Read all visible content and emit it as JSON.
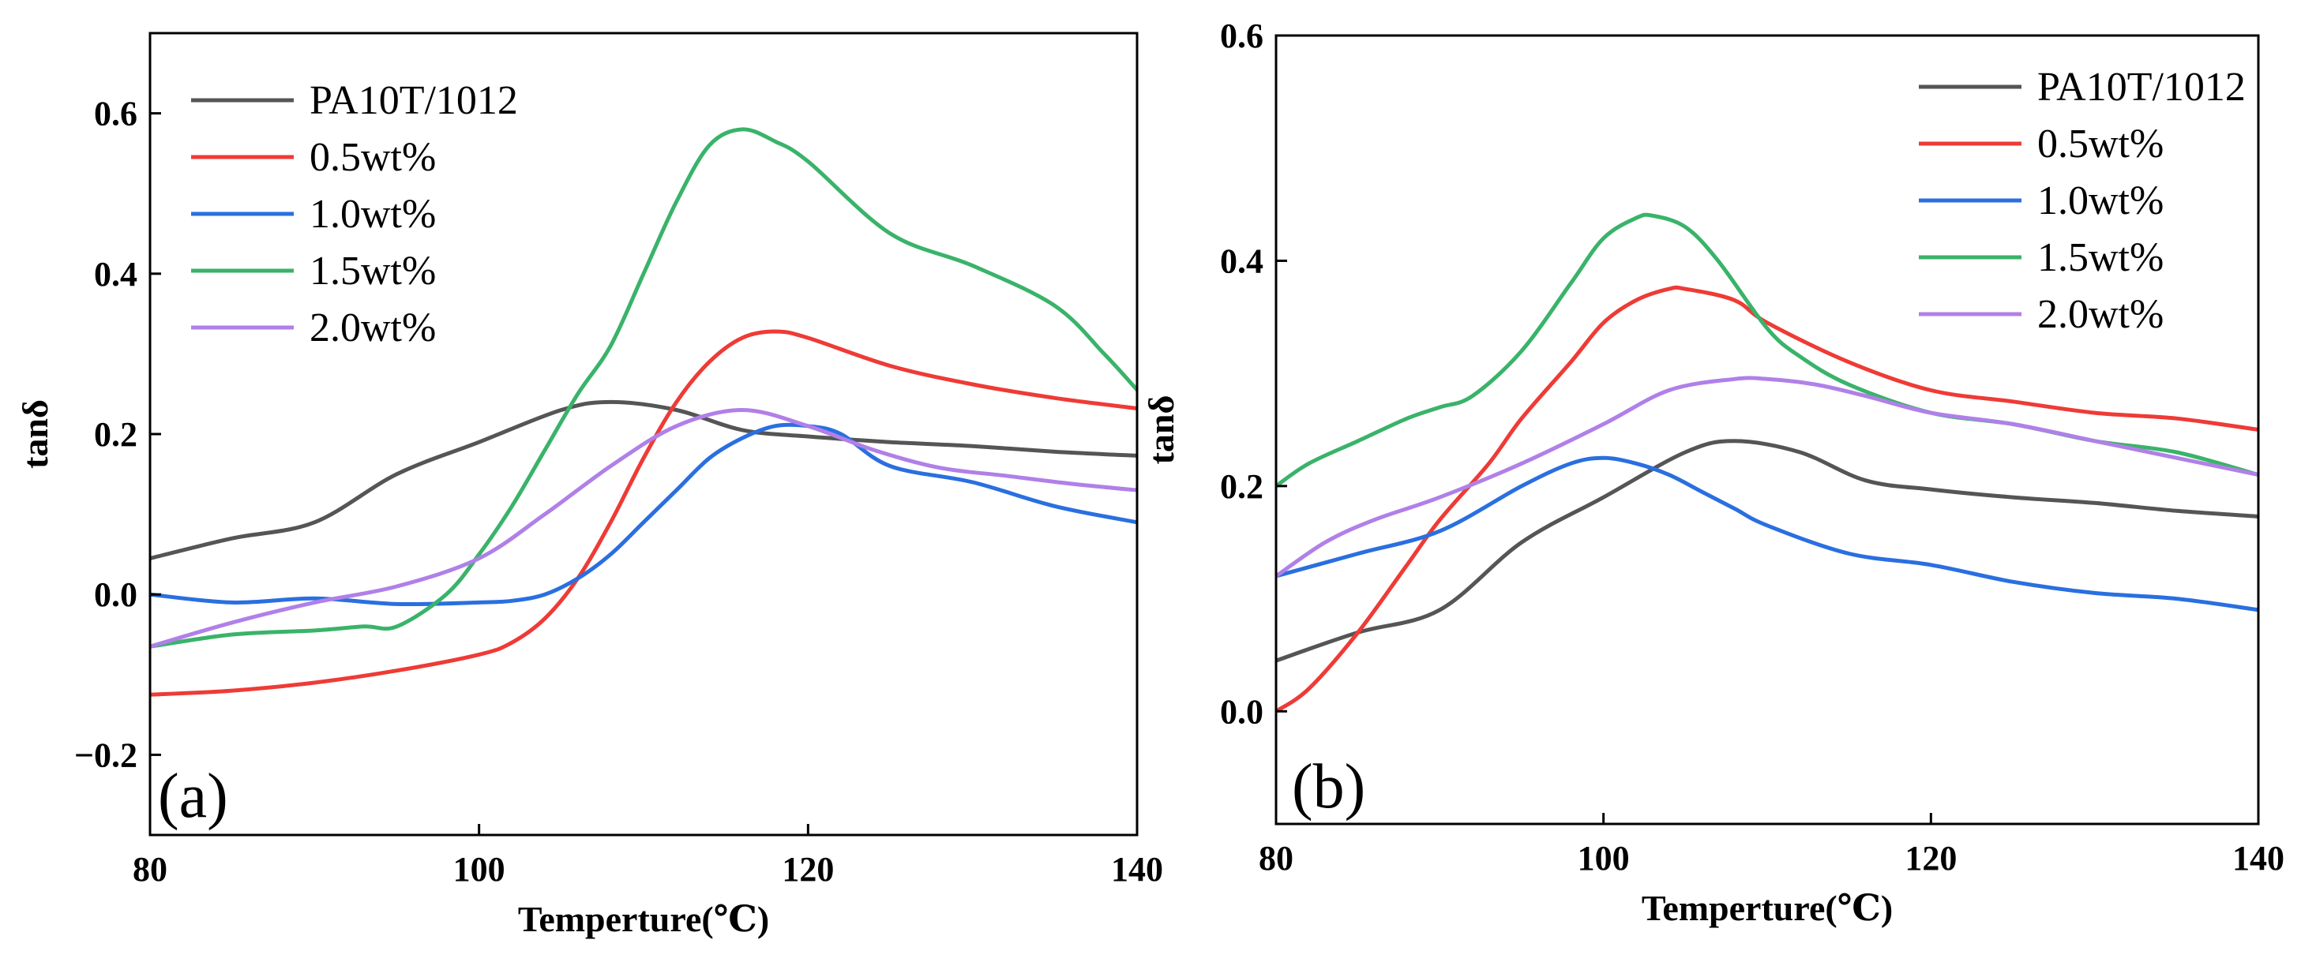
{
  "chart_data": [
    {
      "type": "line",
      "panel_label": "(a)",
      "xlabel": "Temperture(℃)",
      "ylabel": "tanδ",
      "xlim": [
        80,
        140
      ],
      "ylim": [
        -0.3,
        0.7
      ],
      "xticks": [
        80,
        100,
        120,
        140
      ],
      "xtick_labels": [
        "80",
        "100",
        "120",
        "140"
      ],
      "yticks": [
        -0.2,
        0.0,
        0.2,
        0.4,
        0.6
      ],
      "ytick_labels": [
        "−0.2",
        "0.0",
        "0.2",
        "0.4",
        "0.6"
      ],
      "legend_position": "top-left",
      "series": [
        {
          "name": "PA10T/1012",
          "color": "#555555",
          "x": [
            80,
            85,
            90,
            95,
            100,
            105,
            108,
            112,
            116,
            120,
            125,
            130,
            135,
            140
          ],
          "y": [
            0.045,
            0.07,
            0.09,
            0.15,
            0.19,
            0.23,
            0.24,
            0.23,
            0.205,
            0.197,
            0.19,
            0.185,
            0.178,
            0.173
          ]
        },
        {
          "name": "0.5wt%",
          "color": "#ee3b36",
          "x": [
            80,
            85,
            90,
            95,
            100,
            102,
            104,
            106,
            108,
            110,
            112,
            114,
            116,
            118,
            120,
            125,
            130,
            135,
            140
          ],
          "y": [
            -0.125,
            -0.12,
            -0.11,
            -0.095,
            -0.075,
            -0.06,
            -0.03,
            0.02,
            0.09,
            0.17,
            0.24,
            0.29,
            0.32,
            0.328,
            0.32,
            0.285,
            0.262,
            0.245,
            0.232
          ]
        },
        {
          "name": "1.0wt%",
          "color": "#2a6fe0",
          "x": [
            80,
            85,
            90,
            95,
            100,
            102,
            104,
            106,
            108,
            110,
            112,
            114,
            116,
            118,
            120,
            122,
            125,
            130,
            135,
            140
          ],
          "y": [
            0.0,
            -0.01,
            -0.005,
            -0.012,
            -0.01,
            -0.008,
            0.0,
            0.02,
            0.05,
            0.09,
            0.13,
            0.17,
            0.195,
            0.21,
            0.21,
            0.2,
            0.16,
            0.14,
            0.11,
            0.09
          ]
        },
        {
          "name": "1.5wt%",
          "color": "#3ab36a",
          "x": [
            80,
            85,
            90,
            93,
            95,
            98,
            100,
            102,
            104,
            106,
            108,
            110,
            112,
            114,
            116,
            118,
            120,
            125,
            130,
            135,
            138,
            140
          ],
          "y": [
            -0.065,
            -0.05,
            -0.045,
            -0.04,
            -0.04,
            0.0,
            0.05,
            0.11,
            0.18,
            0.25,
            0.31,
            0.4,
            0.49,
            0.56,
            0.58,
            0.565,
            0.54,
            0.45,
            0.41,
            0.36,
            0.3,
            0.255
          ]
        },
        {
          "name": "2.0wt%",
          "color": "#b080e8",
          "x": [
            80,
            85,
            90,
            95,
            100,
            104,
            108,
            112,
            116,
            120,
            124,
            128,
            132,
            136,
            140
          ],
          "y": [
            -0.065,
            -0.035,
            -0.01,
            0.01,
            0.045,
            0.1,
            0.16,
            0.21,
            0.23,
            0.21,
            0.18,
            0.158,
            0.148,
            0.138,
            0.13
          ]
        }
      ]
    },
    {
      "type": "line",
      "panel_label": "(b)",
      "xlabel": "Temperture(℃)",
      "ylabel": "tanδ",
      "xlim": [
        80,
        140
      ],
      "ylim": [
        -0.1,
        0.6
      ],
      "xticks": [
        80,
        100,
        120,
        140
      ],
      "xtick_labels": [
        "80",
        "100",
        "120",
        "140"
      ],
      "yticks": [
        0.0,
        0.2,
        0.4,
        0.6
      ],
      "ytick_labels": [
        "0.0",
        "0.2",
        "0.4",
        "0.6"
      ],
      "legend_position": "top-right",
      "series": [
        {
          "name": "PA10T/1012",
          "color": "#555555",
          "x": [
            80,
            85,
            90,
            95,
            100,
            105,
            108,
            112,
            116,
            120,
            125,
            130,
            135,
            140
          ],
          "y": [
            0.045,
            0.07,
            0.09,
            0.15,
            0.19,
            0.23,
            0.24,
            0.23,
            0.205,
            0.197,
            0.19,
            0.185,
            0.178,
            0.173
          ]
        },
        {
          "name": "0.5wt%",
          "color": "#ee3b36",
          "x": [
            80,
            82,
            85,
            88,
            90,
            93,
            95,
            98,
            100,
            102,
            104,
            105,
            108,
            110,
            115,
            120,
            125,
            130,
            135,
            140
          ],
          "y": [
            0.0,
            0.02,
            0.07,
            0.13,
            0.17,
            0.22,
            0.26,
            0.31,
            0.345,
            0.365,
            0.375,
            0.375,
            0.365,
            0.345,
            0.31,
            0.285,
            0.275,
            0.265,
            0.26,
            0.25
          ]
        },
        {
          "name": "1.0wt%",
          "color": "#2a6fe0",
          "x": [
            80,
            85,
            90,
            95,
            98,
            100,
            102,
            104,
            106,
            108,
            110,
            115,
            120,
            125,
            130,
            135,
            140
          ],
          "y": [
            0.12,
            0.14,
            0.16,
            0.2,
            0.22,
            0.225,
            0.22,
            0.21,
            0.195,
            0.18,
            0.165,
            0.14,
            0.13,
            0.115,
            0.105,
            0.1,
            0.09
          ]
        },
        {
          "name": "1.5wt%",
          "color": "#3ab36a",
          "x": [
            80,
            82,
            85,
            88,
            90,
            92,
            95,
            98,
            100,
            102,
            103,
            105,
            107,
            110,
            112,
            115,
            120,
            125,
            130,
            135,
            140
          ],
          "y": [
            0.2,
            0.22,
            0.24,
            0.26,
            0.27,
            0.28,
            0.32,
            0.38,
            0.42,
            0.438,
            0.44,
            0.43,
            0.4,
            0.34,
            0.315,
            0.29,
            0.265,
            0.255,
            0.24,
            0.23,
            0.21
          ]
        },
        {
          "name": "2.0wt%",
          "color": "#b080e8",
          "x": [
            80,
            83,
            86,
            90,
            95,
            100,
            104,
            108,
            110,
            113,
            116,
            120,
            125,
            130,
            135,
            140
          ],
          "y": [
            0.12,
            0.15,
            0.17,
            0.19,
            0.22,
            0.255,
            0.285,
            0.295,
            0.295,
            0.29,
            0.28,
            0.265,
            0.255,
            0.24,
            0.225,
            0.21
          ]
        }
      ]
    }
  ]
}
